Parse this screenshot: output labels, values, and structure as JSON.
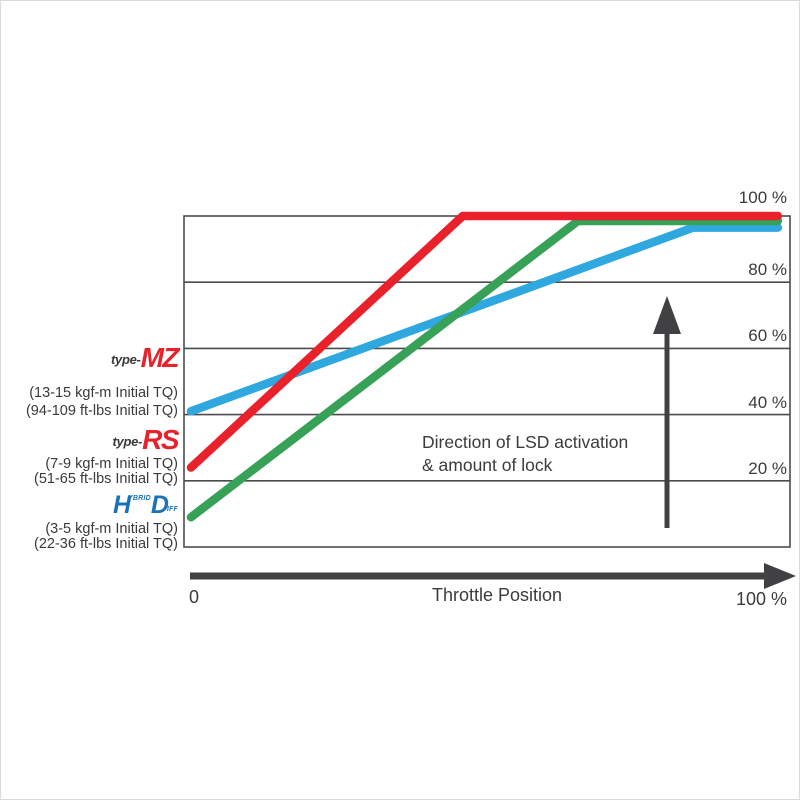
{
  "chart_data": {
    "type": "line",
    "title": "",
    "xlabel": "Throttle Position",
    "ylabel": "",
    "xlim": [
      0,
      100
    ],
    "ylim": [
      0,
      100
    ],
    "grid": true,
    "x_start_label": "0",
    "x_end_label": "100 %",
    "y_ticks": [
      {
        "label": "100 %",
        "value": 100
      },
      {
        "label": "80 %",
        "value": 80
      },
      {
        "label": "60 %",
        "value": 60
      },
      {
        "label": "40 %",
        "value": 40
      },
      {
        "label": "20 %",
        "value": 20
      }
    ],
    "annotation": [
      "Direction of LSD activation",
      "& amount of lock"
    ],
    "series": [
      {
        "name": "type-MZ",
        "color": "#2fa8e0",
        "points": [
          [
            0,
            41
          ],
          [
            84,
            96.5
          ],
          [
            98,
            96.5
          ]
        ]
      },
      {
        "name": "Hybrid Diff",
        "color": "#37a158",
        "points": [
          [
            0,
            9
          ],
          [
            65,
            98.5
          ],
          [
            98,
            98.5
          ]
        ]
      },
      {
        "name": "type-RS",
        "color": "#e8212b",
        "points": [
          [
            0,
            24
          ],
          [
            46,
            100
          ],
          [
            98,
            100
          ]
        ]
      }
    ],
    "legend_position": "left"
  },
  "legend": {
    "items": [
      {
        "prefix": "type-",
        "logo": "MZ",
        "logo_color": "#e8212b",
        "kgf": "(13-15 kgf-m Initial TQ)",
        "ftlbs": "(94-109 ft-lbs Initial TQ)"
      },
      {
        "prefix": "type-",
        "logo": "RS",
        "logo_color": "#e8212b",
        "kgf": "(7-9 kgf-m Initial TQ)",
        "ftlbs": "(51-65 ft-lbs Initial TQ)"
      },
      {
        "logo_h": "H",
        "logo_ybrid": "YBRID",
        "logo_d": "D",
        "logo_iff": "IFF",
        "logo_color": "#1a72b8",
        "kgf": "(3-5 kgf-m Initial TQ)",
        "ftlbs": "(22-36 ft-lbs Initial TQ)"
      }
    ]
  },
  "colors": {
    "grid": "#4c4c4e",
    "arrow": "#414042",
    "text": "#3a3a3a"
  }
}
